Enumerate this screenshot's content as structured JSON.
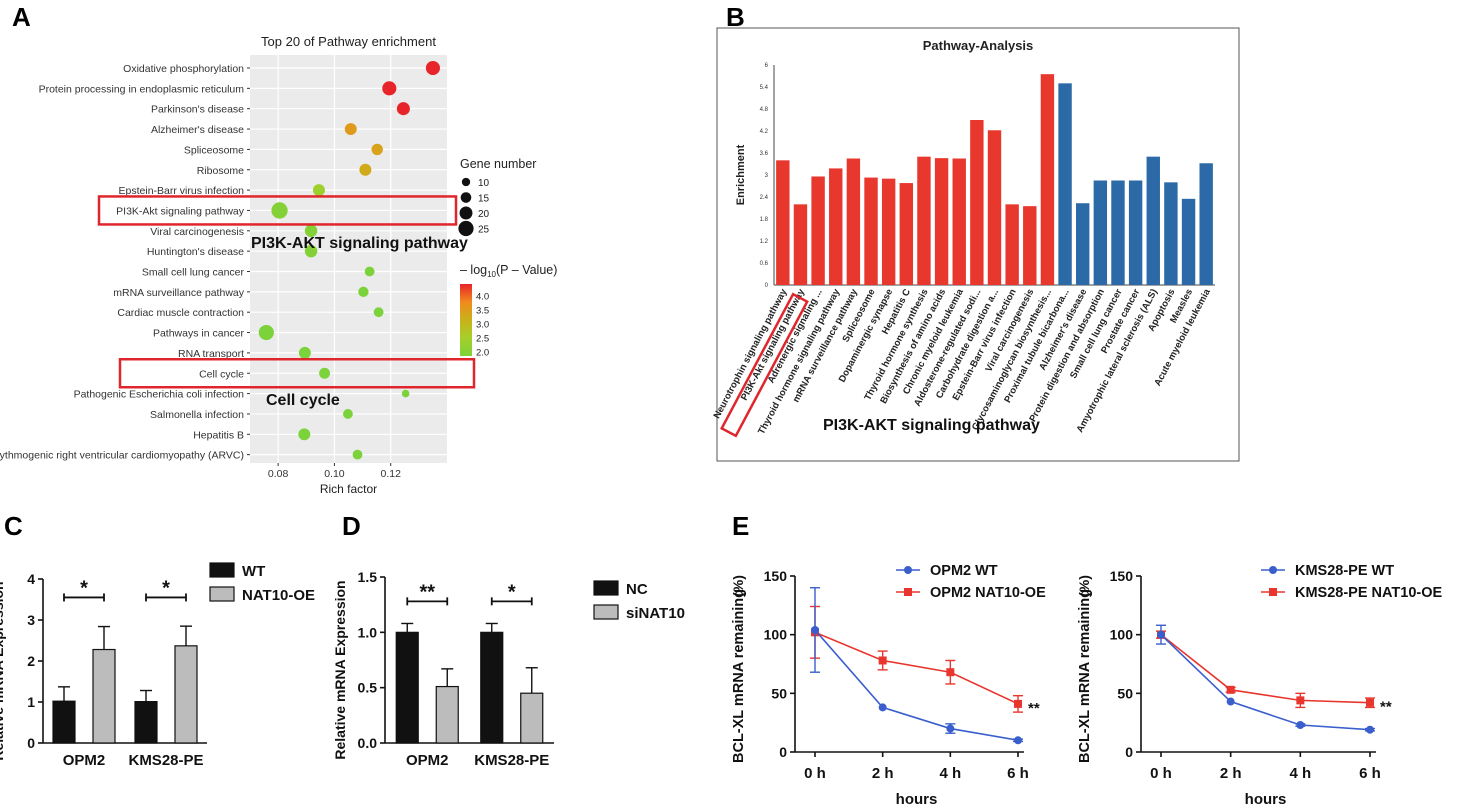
{
  "panel_letters": {
    "a": "A",
    "b": "B",
    "c": "C",
    "d": "D",
    "e": "E"
  },
  "chart_data": [
    {
      "panel": "A",
      "type": "scatter",
      "title": "Top 20 of Pathway enrichment",
      "xlabel": "Rich factor",
      "xlim": [
        0.07,
        0.14
      ],
      "xticks": [
        "0.08",
        "0.10",
        "0.12"
      ],
      "xtick_values": [
        0.08,
        0.1,
        0.12
      ],
      "categories": [
        "Oxidative phosphorylation",
        "Protein processing in endoplasmic reticulum",
        "Parkinson's disease",
        "Alzheimer's disease",
        "Spliceosome",
        "Ribosome",
        "Epstein-Barr virus infection",
        "PI3K-Akt signaling pathway",
        "Viral carcinogenesis",
        "Huntington's disease",
        "Small cell lung cancer",
        "mRNA surveillance pathway",
        "Cardiac muscle contraction",
        "Pathways in cancer",
        "RNA transport",
        "Cell cycle",
        "Pathogenic Escherichia coli infection",
        "Salmonella infection",
        "Hepatitis B",
        "Arrhythmogenic right ventricular cardiomyopathy (ARVC)"
      ],
      "x": [
        0.135,
        0.1195,
        0.1245,
        0.1058,
        0.1152,
        0.111,
        0.0945,
        0.0805,
        0.0917,
        0.0917,
        0.1125,
        0.1103,
        0.1157,
        0.0758,
        0.0895,
        0.0965,
        0.1253,
        0.1048,
        0.0893,
        0.1082
      ],
      "gene_number": [
        18,
        18,
        16,
        14,
        13,
        14,
        14,
        22,
        15,
        15,
        10,
        11,
        10,
        20,
        14,
        12,
        6,
        10,
        14,
        10
      ],
      "neg_log10_p": [
        4.5,
        4.2,
        4.0,
        3.3,
        3.2,
        3.1,
        2.4,
        2.1,
        2.1,
        2.1,
        2.0,
        2.0,
        2.0,
        2.0,
        1.9,
        1.9,
        1.9,
        1.9,
        1.8,
        1.8
      ],
      "size_legend": {
        "title": "Gene number",
        "values": [
          10,
          15,
          20,
          25
        ],
        "labels": [
          "10",
          "15",
          "20",
          "25"
        ]
      },
      "color_legend": {
        "title": "– log",
        "title_sub": "10",
        "title_rest": "(P – Value)",
        "ticks": [
          4.0,
          3.5,
          3.0,
          2.5,
          2.0
        ],
        "labels": [
          "4.0",
          "3.5",
          "3.0",
          "2.5",
          "2.0"
        ],
        "colors": [
          "#e8242b",
          "#f08a1c",
          "#c9b21a",
          "#a6cf2a",
          "#7cd23a"
        ]
      },
      "highlights": [
        "PI3K-Akt signaling pathway",
        "Cell cycle"
      ],
      "annotations": [
        "PI3K-AKT signaling pathway",
        "Cell cycle"
      ],
      "highlight_color": "#e0262d"
    },
    {
      "panel": "B",
      "type": "bar",
      "title": "Pathway-Analysis",
      "ylabel": "Enrichment",
      "ylim": [
        0,
        6
      ],
      "yticks": [
        "0",
        "0.6",
        "1.2",
        "1.8",
        "2.4",
        "3",
        "3.6",
        "4.2",
        "4.8",
        "5.4",
        "6"
      ],
      "ytick_values": [
        0,
        0.6,
        1.2,
        1.8,
        2.4,
        3,
        3.6,
        4.2,
        4.8,
        5.4,
        6
      ],
      "categories": [
        "Neurotrophin signaling pathway",
        "PI3K-Akt signaling pathway",
        "Adrenergic signaling ...",
        "Thyroid hormone signaling pathway",
        "mRNA surveillance pathway",
        "Spliceosome",
        "Dopaminergic synapse",
        "Hepatitis C",
        "Thyroid hormone synthesis",
        "Biosynthesis of amino acids",
        "Chronic myeloid leukemia",
        "Aldosterone-regulated sodi...",
        "Carbohydrate digestion a...",
        "Epstein-Barr virus infection",
        "Viral carcinogenesis",
        "Glycosaminoglycan biosynthesis...",
        "Proximal tubule bicarbona...",
        "Alzheimer's disease",
        "Protein digestion and absorption",
        "Small cell lung cancer",
        "Prostate cancer",
        "Amyotrophic lateral sclerosis (ALS)",
        "Apoptosis",
        "Measles",
        "Acute myeloid leukemia"
      ],
      "values": [
        3.4,
        2.2,
        2.96,
        3.18,
        3.45,
        2.93,
        2.9,
        2.78,
        3.5,
        3.46,
        3.45,
        4.5,
        4.22,
        2.2,
        2.15,
        5.75,
        5.5,
        2.23,
        2.85,
        2.85,
        2.85,
        3.5,
        2.8,
        2.35,
        3.32
      ],
      "colors_by_bar": [
        "#e8382d",
        "#e8382d",
        "#e8382d",
        "#e8382d",
        "#e8382d",
        "#e8382d",
        "#e8382d",
        "#e8382d",
        "#e8382d",
        "#e8382d",
        "#e8382d",
        "#e8382d",
        "#e8382d",
        "#e8382d",
        "#e8382d",
        "#e8382d",
        "#2b6aa6",
        "#2b6aa6",
        "#2b6aa6",
        "#2b6aa6",
        "#2b6aa6",
        "#2b6aa6",
        "#2b6aa6",
        "#2b6aa6",
        "#2b6aa6"
      ],
      "highlight": "PI3K-Akt signaling pathway",
      "annotation": "PI3K-AKT signaling pathway",
      "highlight_color": "#e0262d"
    },
    {
      "panel": "C",
      "type": "bar",
      "ylabel": "Relative mRNA Expression",
      "ylim": [
        0,
        4
      ],
      "yticks": [
        "0",
        "1",
        "2",
        "3",
        "4"
      ],
      "ytick_values": [
        0,
        1,
        2,
        3,
        4
      ],
      "categories": [
        "OPM2",
        "KMS28-PE"
      ],
      "series": [
        {
          "name": "WT",
          "color": "#111111",
          "values": [
            1.02,
            1.01
          ],
          "errors": [
            0.35,
            0.27
          ]
        },
        {
          "name": "NAT10-OE",
          "color": "#bcbcbc",
          "values": [
            2.28,
            2.37
          ],
          "errors": [
            0.56,
            0.48
          ]
        }
      ],
      "significance": [
        "*",
        "*"
      ],
      "sig_values": [
        3.55,
        3.55
      ]
    },
    {
      "panel": "D",
      "type": "bar",
      "ylabel": "Relative mRNA Expression",
      "ylim": [
        0,
        1.5
      ],
      "yticks": [
        "0.0",
        "0.5",
        "1.0",
        "1.5"
      ],
      "ytick_values": [
        0,
        0.5,
        1.0,
        1.5
      ],
      "categories": [
        "OPM2",
        "KMS28-PE"
      ],
      "series": [
        {
          "name": "NC",
          "color": "#111111",
          "values": [
            1.0,
            1.0
          ],
          "errors": [
            0.08,
            0.08
          ]
        },
        {
          "name": "siNAT10",
          "color": "#bcbcbc",
          "values": [
            0.51,
            0.45
          ],
          "errors": [
            0.16,
            0.23
          ]
        }
      ],
      "significance": [
        "**",
        "*"
      ],
      "sig_values": [
        1.28,
        1.28
      ]
    },
    {
      "panel": "E1",
      "type": "line",
      "ylabel": "BCL-XL mRNA remaining",
      "ylabel_unit": "(%)",
      "xlabel": "hours",
      "ylim": [
        0,
        150
      ],
      "yticks": [
        "0",
        "50",
        "100",
        "150"
      ],
      "ytick_values": [
        0,
        50,
        100,
        150
      ],
      "categories": [
        "0 h",
        "2 h",
        "4 h",
        "6 h"
      ],
      "series": [
        {
          "name": "OPM2 WT",
          "color": "#3a5fcd",
          "marker": "circle",
          "values": [
            104,
            38,
            20,
            10
          ],
          "errors": [
            36,
            0,
            4,
            1
          ]
        },
        {
          "name": "OPM2 NAT10-OE",
          "color": "#e8362e",
          "marker": "square",
          "values": [
            102,
            78,
            68,
            41
          ],
          "errors": [
            22,
            8,
            10,
            7
          ]
        }
      ],
      "significance": "**"
    },
    {
      "panel": "E2",
      "type": "line",
      "ylabel": "BCL-XL mRNA remaining",
      "ylabel_unit": "(%)",
      "xlabel": "hours",
      "ylim": [
        0,
        150
      ],
      "yticks": [
        "0",
        "50",
        "100",
        "150"
      ],
      "ytick_values": [
        0,
        50,
        100,
        150
      ],
      "categories": [
        "0 h",
        "2 h",
        "4 h",
        "6 h"
      ],
      "series": [
        {
          "name": "KMS28-PE WT",
          "color": "#3a5fcd",
          "marker": "circle",
          "values": [
            100,
            43,
            23,
            19
          ],
          "errors": [
            8,
            0,
            1,
            1
          ]
        },
        {
          "name": "KMS28-PE NAT10-OE",
          "color": "#e8362e",
          "marker": "square",
          "values": [
            100,
            53,
            44,
            42
          ],
          "errors": [
            3,
            2,
            6,
            4
          ]
        }
      ],
      "significance": "**"
    }
  ]
}
